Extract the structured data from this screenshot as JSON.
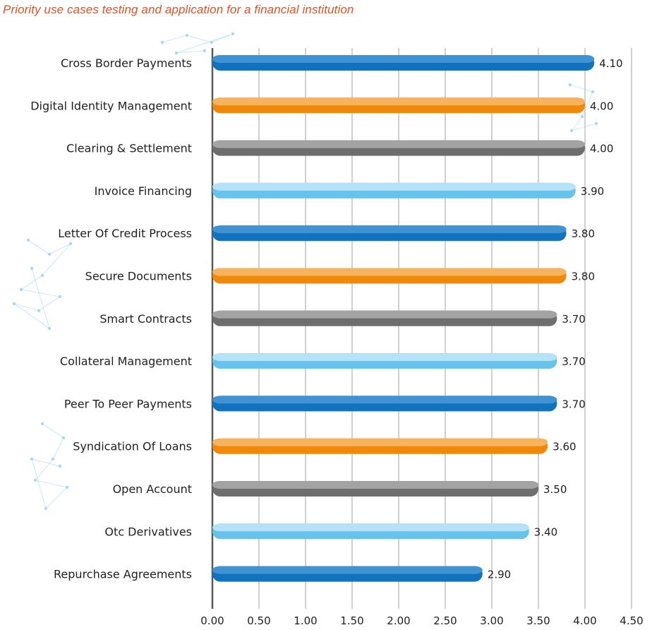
{
  "chart_data": {
    "type": "bar",
    "orientation": "horizontal",
    "title": "Priority use cases testing and application for a financial institution",
    "categories": [
      "Cross Border Payments",
      "Digital Identity Management",
      "Clearing & Settlement",
      "Invoice Financing",
      "Letter Of Credit Process",
      "Secure Documents",
      "Smart Contracts",
      "Collateral Management",
      "Peer To Peer Payments",
      "Syndication Of Loans",
      "Open Account",
      "Otc Derivatives",
      "Repurchase Agreements"
    ],
    "values": [
      4.1,
      4.0,
      4.0,
      3.9,
      3.8,
      3.8,
      3.7,
      3.7,
      3.7,
      3.6,
      3.5,
      3.4,
      2.9
    ],
    "value_labels": [
      "4.10",
      "4.00",
      "4.00",
      "3.90",
      "3.80",
      "3.80",
      "3.70",
      "3.70",
      "3.70",
      "3.60",
      "3.50",
      "3.40",
      "2.90"
    ],
    "xticks": [
      "0.00",
      "0.50",
      "1.00",
      "1.50",
      "2.00",
      "2.50",
      "3.00",
      "3.50",
      "4.00",
      "4.50"
    ],
    "xlim": [
      0,
      4.5
    ],
    "grid": "vertical",
    "legend": "none",
    "bar_colors": [
      "#1173be",
      "#f0890a",
      "#6e6e6e",
      "#66c3ec"
    ],
    "bar_highlight_colors": [
      "#3f93d3",
      "#f7b25e",
      "#a3a3a3",
      "#b5e2f7"
    ]
  }
}
